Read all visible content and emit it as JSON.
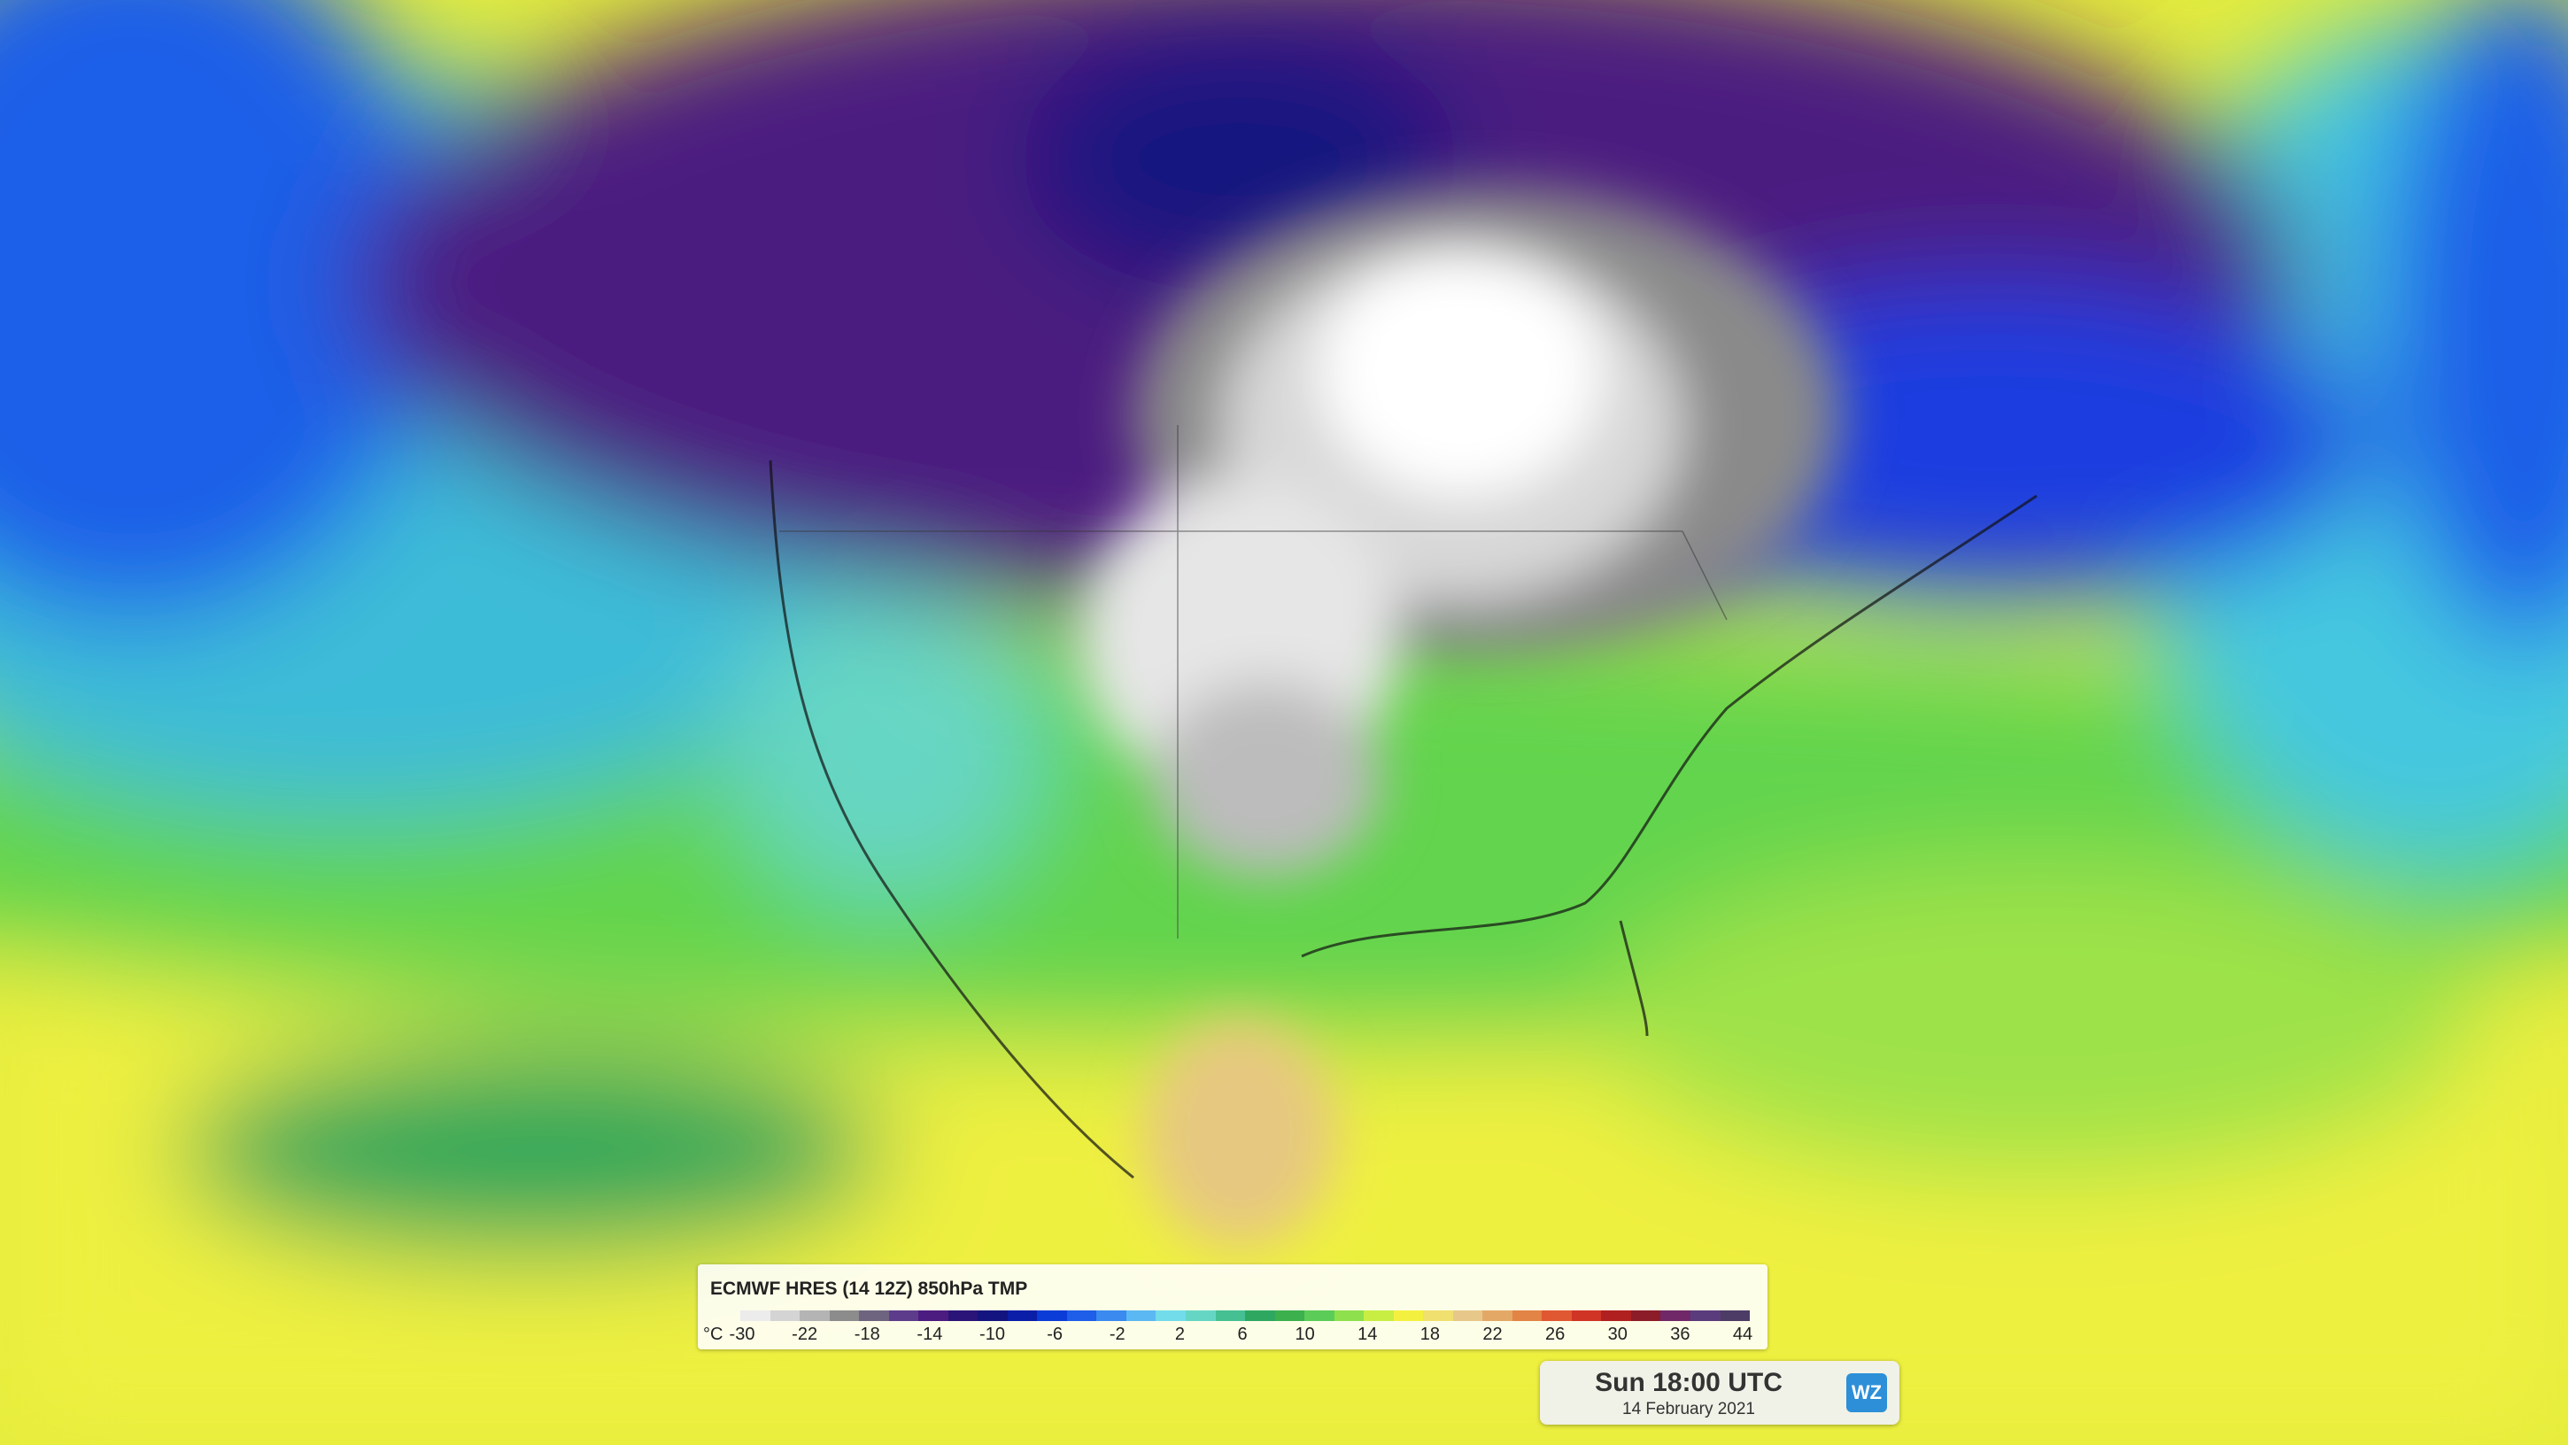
{
  "legend": {
    "title": "ECMWF HRES (14 12Z) 850hPa TMP",
    "unit": "°C",
    "ticks": [
      -30,
      -22,
      -18,
      -14,
      -10,
      -6,
      -2,
      2,
      6,
      10,
      14,
      18,
      22,
      26,
      30,
      36,
      44
    ],
    "colors": [
      "#ececec",
      "#d4d4d4",
      "#b4b4b4",
      "#8c8c8c",
      "#6e6480",
      "#5e3c8c",
      "#4c1c80",
      "#2a1478",
      "#141480",
      "#0a1ea8",
      "#0c3cd8",
      "#1e5ee8",
      "#3a8af0",
      "#5cb8f2",
      "#72dcea",
      "#66d6c4",
      "#44c092",
      "#2ea860",
      "#3cb04c",
      "#5ccc58",
      "#8ee04c",
      "#c8ee44",
      "#f4f040",
      "#f0e070",
      "#e8c88a",
      "#e4a866",
      "#e28446",
      "#e05832",
      "#d03424",
      "#b02020",
      "#8c1c28",
      "#702868",
      "#5a3c7c",
      "#4c3c66"
    ]
  },
  "timestamp": {
    "time": "Sun 18:00 UTC",
    "date": "14 February 2021",
    "logo": "WZ"
  }
}
